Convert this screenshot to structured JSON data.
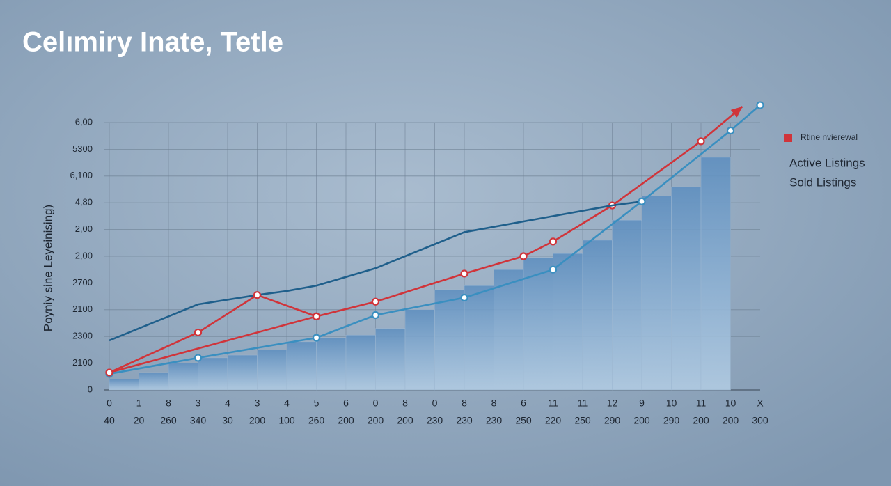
{
  "chart_data": {
    "type": "line",
    "title": "Celımiry Inate, Tetle",
    "y_label": "Poyniy sine  Leyeinising)",
    "categories": [
      "0",
      "1",
      "8",
      "3",
      "4",
      "3",
      "4",
      "5",
      "6",
      "0",
      "8",
      "0",
      "8",
      "8",
      "6",
      "11",
      "11",
      "12",
      "9",
      "10",
      "11",
      "10",
      "X"
    ],
    "category_sublabels": [
      "40",
      "20",
      "260",
      "340",
      "30",
      "200",
      "100",
      "260",
      "200",
      "200",
      "200",
      "230",
      "230",
      "230",
      "250",
      "220",
      "250",
      "290",
      "200",
      "290",
      "200",
      "200",
      "300"
    ],
    "ylim": [
      0,
      10
    ],
    "yticks": [
      0,
      {
        "value": 1,
        "label": "2100"
      },
      {
        "value": 2,
        "label": "2300"
      },
      {
        "value": 3,
        "label": "2100"
      },
      {
        "value": 4,
        "label": "2700"
      },
      {
        "value": 5,
        "label": "2,00"
      },
      {
        "value": 6,
        "label": "2,00"
      },
      {
        "value": 7,
        "label": "4,80"
      },
      {
        "value": 8,
        "label": "6,100"
      },
      {
        "value": 9,
        "label": "5300"
      },
      {
        "value": 10,
        "label": "6,00"
      }
    ],
    "grid": true,
    "legend": "right",
    "series": [
      {
        "name": "Rtine nvierewal",
        "type": "line",
        "color": "#d0343a",
        "swatch": true,
        "markers": true,
        "arrow": true,
        "x": [
          0,
          7,
          9,
          12,
          14,
          15,
          17,
          20,
          21.4
        ],
        "values": [
          0.65,
          2.75,
          3.3,
          4.35,
          5.0,
          5.55,
          6.9,
          9.3,
          10.6
        ]
      },
      {
        "name": "Active Listings",
        "type": "line",
        "color": "#1f5f8b",
        "swatch": false,
        "markers": false,
        "x": [
          0,
          3,
          5,
          6,
          7,
          9,
          12,
          15,
          17,
          18
        ],
        "values": [
          1.85,
          3.2,
          3.55,
          3.7,
          3.9,
          4.55,
          5.9,
          6.5,
          6.9,
          7.05
        ]
      },
      {
        "name": "Sold Listings",
        "type": "line",
        "color": "#3a8fc0",
        "swatch": false,
        "markers": true,
        "x": [
          0,
          3,
          7,
          9,
          12,
          15,
          18,
          21,
          22
        ],
        "values": [
          0.6,
          1.2,
          1.95,
          2.8,
          3.45,
          4.5,
          7.05,
          9.7,
          10.65
        ]
      },
      {
        "type": "line",
        "color": "#d0343a",
        "markers": true,
        "x": [
          0,
          3,
          5,
          7
        ],
        "values": [
          0.65,
          2.15,
          3.55,
          2.75
        ]
      },
      {
        "type": "bar",
        "color": "#7fa6cb",
        "values": [
          0.4,
          0.65,
          1.0,
          1.2,
          1.3,
          1.5,
          1.8,
          1.95,
          2.05,
          2.3,
          3.0,
          3.75,
          3.9,
          4.5,
          4.95,
          5.1,
          5.6,
          6.35,
          7.25,
          7.6,
          8.7,
          null,
          null
        ]
      }
    ]
  }
}
